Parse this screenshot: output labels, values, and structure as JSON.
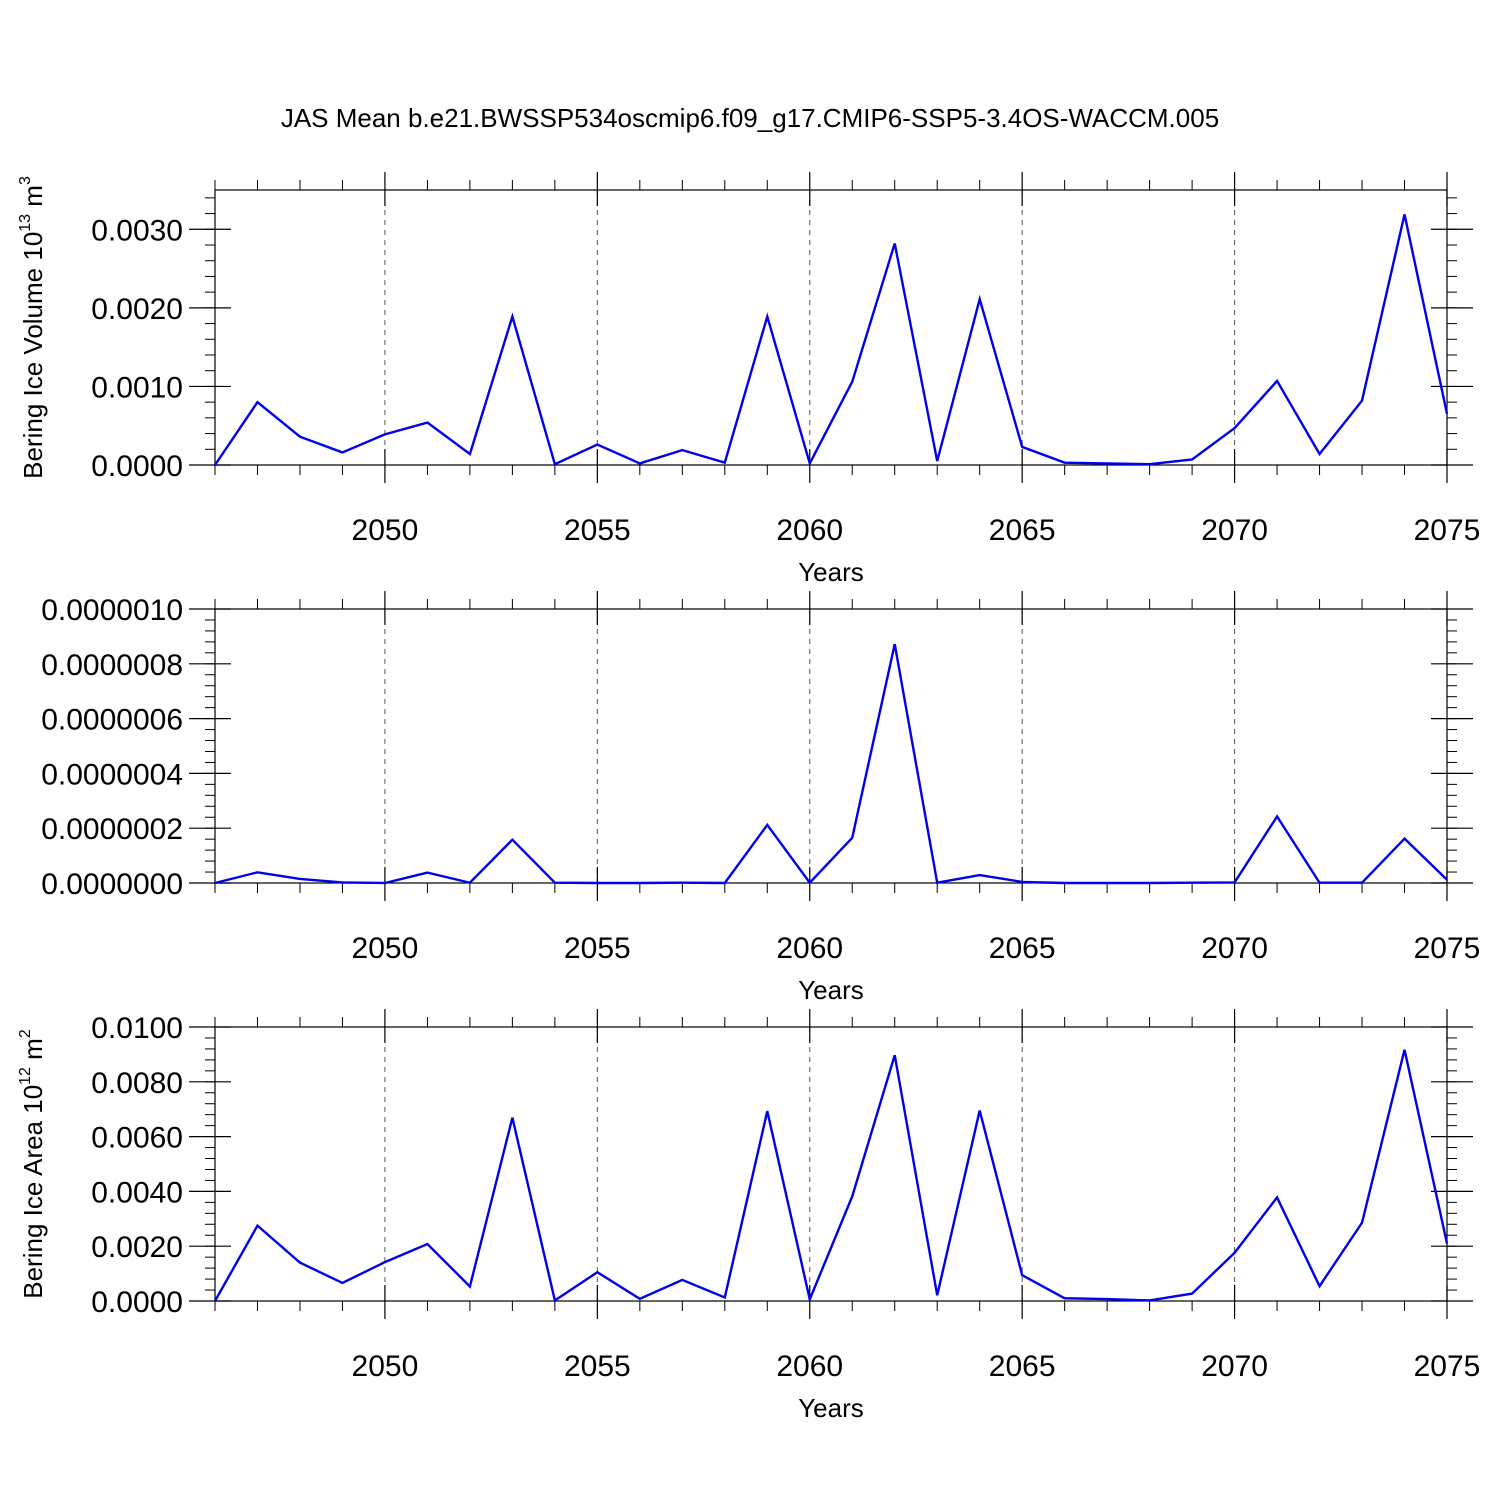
{
  "title": "JAS Mean b.e21.BWSSP534oscmip6.f09_g17.CMIP6-SSP5-3.4OS-WACCM.005",
  "line_color": "#0000ee",
  "chart_data": [
    {
      "type": "line",
      "ylabel": "Bering Ice Volume 10",
      "ylabel_sup": "13",
      "ylabel_unit": " m",
      "ylabel_unit_sup": "3",
      "xlabel": "Years",
      "xlim": [
        2046,
        2075
      ],
      "ylim": [
        0,
        0.0035
      ],
      "xticks": [
        "2050",
        "2055",
        "2060",
        "2065",
        "2070",
        "2075"
      ],
      "yticks": [
        "0.0000",
        "0.0010",
        "0.0020",
        "0.0030"
      ],
      "ytick_values": [
        0,
        0.001,
        0.002,
        0.003
      ],
      "grid": "vertical dashed at major x ticks",
      "x": [
        2046,
        2047,
        2048,
        2049,
        2050,
        2051,
        2052,
        2053,
        2054,
        2055,
        2056,
        2057,
        2058,
        2059,
        2060,
        2061,
        2062,
        2063,
        2064,
        2065,
        2066,
        2067,
        2068,
        2069,
        2070,
        2071,
        2072,
        2073,
        2074,
        2075
      ],
      "values": [
        0.0,
        0.0008,
        0.00036,
        0.00016,
        0.00039,
        0.00054,
        0.00014,
        0.00189,
        1e-05,
        0.00026,
        2e-05,
        0.00019,
        3e-05,
        0.00189,
        2e-05,
        0.00106,
        0.00282,
        5e-05,
        0.00211,
        0.00023,
        3e-05,
        2e-05,
        1e-05,
        7e-05,
        0.00047,
        0.00107,
        0.00014,
        0.00082,
        0.00319,
        0.00065
      ]
    },
    {
      "type": "line",
      "xlabel": "Years",
      "xlim": [
        2046,
        2075
      ],
      "ylim": [
        0,
        1e-06
      ],
      "xticks": [
        "2050",
        "2055",
        "2060",
        "2065",
        "2070",
        "2075"
      ],
      "yticks": [
        "0.0000000",
        "0.0000002",
        "0.0000004",
        "0.0000006",
        "0.0000008",
        "0.0000010"
      ],
      "ytick_values": [
        0,
        2e-07,
        4e-07,
        6e-07,
        8e-07,
        1e-06
      ],
      "grid": "vertical dashed at major x ticks",
      "x": [
        2046,
        2047,
        2048,
        2049,
        2050,
        2051,
        2052,
        2053,
        2054,
        2055,
        2056,
        2057,
        2058,
        2059,
        2060,
        2061,
        2062,
        2063,
        2064,
        2065,
        2066,
        2067,
        2068,
        2069,
        2070,
        2071,
        2072,
        2073,
        2074,
        2075
      ],
      "values": [
        0.0,
        3.9e-08,
        1.5e-08,
        2e-09,
        0.0,
        3.8e-08,
        1e-09,
        1.58e-07,
        1e-09,
        0.0,
        0.0,
        1e-09,
        0.0,
        2.12e-07,
        1e-09,
        1.65e-07,
        8.72e-07,
        1e-09,
        2.9e-08,
        4e-09,
        0.0,
        0.0,
        0.0,
        1e-09,
        2e-09,
        2.43e-07,
        1e-09,
        1e-09,
        1.62e-07,
        1.2e-08
      ]
    },
    {
      "type": "line",
      "ylabel": "Bering Ice Area 10",
      "ylabel_sup": "12",
      "ylabel_unit": " m",
      "ylabel_unit_sup": "2",
      "xlabel": "Years",
      "xlim": [
        2046,
        2075
      ],
      "ylim": [
        0,
        0.01
      ],
      "xticks": [
        "2050",
        "2055",
        "2060",
        "2065",
        "2070",
        "2075"
      ],
      "yticks": [
        "0.0000",
        "0.0020",
        "0.0040",
        "0.0060",
        "0.0080",
        "0.0100"
      ],
      "ytick_values": [
        0,
        0.002,
        0.004,
        0.006,
        0.008,
        0.01
      ],
      "grid": "vertical dashed at major x ticks",
      "x": [
        2046,
        2047,
        2048,
        2049,
        2050,
        2051,
        2052,
        2053,
        2054,
        2055,
        2056,
        2057,
        2058,
        2059,
        2060,
        2061,
        2062,
        2063,
        2064,
        2065,
        2066,
        2067,
        2068,
        2069,
        2070,
        2071,
        2072,
        2073,
        2074,
        2075
      ],
      "values": [
        0.0,
        0.00275,
        0.0014,
        0.00066,
        0.00142,
        0.00208,
        0.00053,
        0.00669,
        2e-05,
        0.00105,
        8e-05,
        0.00077,
        0.00013,
        0.00693,
        6e-05,
        0.00382,
        0.00897,
        0.00021,
        0.00695,
        0.00094,
        0.0001,
        7e-05,
        2e-05,
        0.00027,
        0.00176,
        0.00378,
        0.00054,
        0.00286,
        0.00917,
        0.0021
      ]
    }
  ]
}
